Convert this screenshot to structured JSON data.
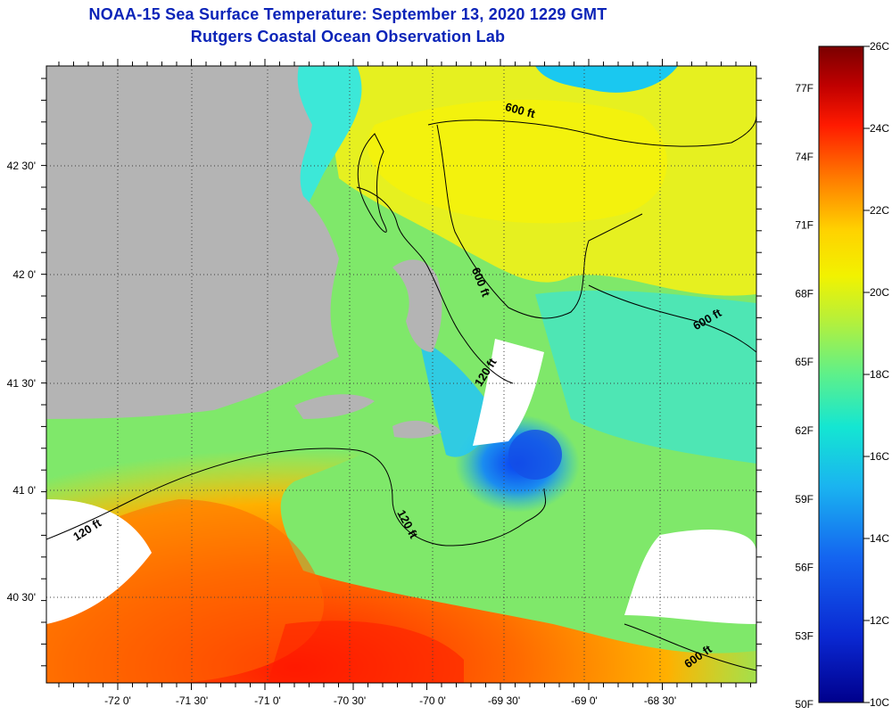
{
  "header": {
    "title": "NOAA-15 Sea Surface Temperature:  September 13, 2020 1229 GMT",
    "subtitle": "Rutgers Coastal Ocean Observation Lab"
  },
  "map": {
    "lon_ticks": [
      "-72 0'",
      "-71 30'",
      "-71 0'",
      "-70 30'",
      "-70 0'",
      "-69 30'",
      "-69 0'",
      "-68 30'"
    ],
    "lat_ticks": [
      "42 30'",
      "42 0'",
      "41 30'",
      "41 0'",
      "40 30'"
    ],
    "contours": [
      "600 ft",
      "600 ft",
      "600 ft",
      "120 ft",
      "120 ft",
      "120 ft",
      "600 ft"
    ]
  },
  "colorbar": {
    "celsius_labels": [
      "26C",
      "24C",
      "22C",
      "20C",
      "18C",
      "16C",
      "14C",
      "12C",
      "10C"
    ],
    "fahrenheit_labels": [
      "77F",
      "74F",
      "71F",
      "68F",
      "65F",
      "62F",
      "59F",
      "56F",
      "53F",
      "50F"
    ],
    "colors": [
      "#7a0000",
      "#c00000",
      "#ff1a00",
      "#ff7a00",
      "#ffd200",
      "#f2f200",
      "#b4f03c",
      "#5ef08a",
      "#14e6d2",
      "#1ab4f0",
      "#1464f0",
      "#0a28d2",
      "#00008c"
    ]
  }
}
